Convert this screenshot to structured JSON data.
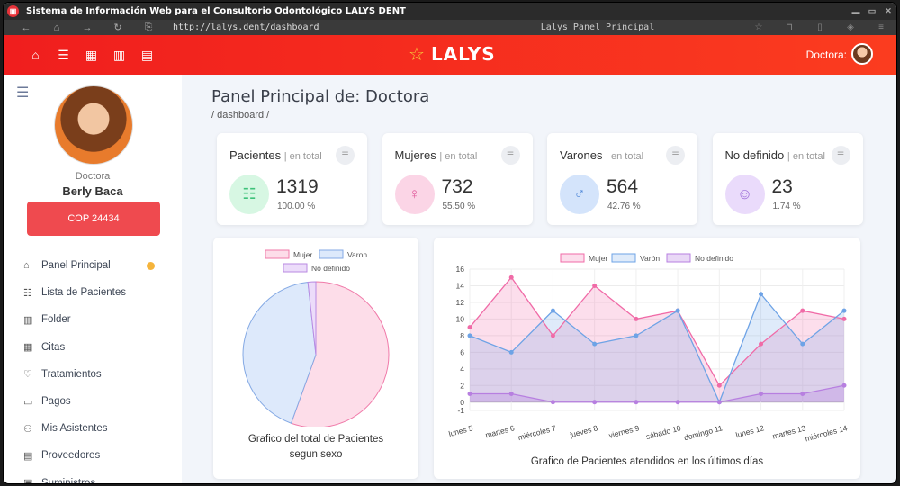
{
  "window": {
    "title": "Sistema de Información Web para el Consultorio Odontológico LALYS DENT"
  },
  "browser": {
    "url": "http://lalys.dent/dashboard",
    "page_title": "Lalys Panel Principal"
  },
  "header": {
    "brand": "LALYS",
    "user_label": "Doctora:"
  },
  "sidebar": {
    "role": "Doctora",
    "name": "Berly Baca",
    "cop_label": "COP 24434",
    "items": [
      {
        "label": "Panel Principal",
        "icon": "home-icon"
      },
      {
        "label": "Lista de Pacientes",
        "icon": "list-icon"
      },
      {
        "label": "Folder",
        "icon": "folder-icon"
      },
      {
        "label": "Citas",
        "icon": "calendar-icon"
      },
      {
        "label": "Tratamientos",
        "icon": "tooth-icon"
      },
      {
        "label": "Pagos",
        "icon": "payment-icon"
      },
      {
        "label": "Mis Asistentes",
        "icon": "users-icon"
      },
      {
        "label": "Proveedores",
        "icon": "store-icon"
      },
      {
        "label": "Suministros",
        "icon": "box-icon"
      }
    ]
  },
  "main": {
    "title": "Panel Principal de: Doctora",
    "breadcrumb": "/ dashboard /",
    "stats": [
      {
        "label": "Pacientes",
        "sub": "| en total",
        "value": "1319",
        "pct": "100.00 %",
        "color": "#d7f7e3",
        "icon_color": "#3ec27a"
      },
      {
        "label": "Mujeres",
        "sub": "| en total",
        "value": "732",
        "pct": "55.50 %",
        "color": "#fbd5e6",
        "icon_color": "#e0589a"
      },
      {
        "label": "Varones",
        "sub": "| en total",
        "value": "564",
        "pct": "42.76 %",
        "color": "#d4e4fb",
        "icon_color": "#4d86d8"
      },
      {
        "label": "No definido",
        "sub": "| en total",
        "value": "23",
        "pct": "1.74 %",
        "color": "#eadbfb",
        "icon_color": "#9b6bd8"
      }
    ],
    "pie_caption_1": "Grafico del total de Pacientes",
    "pie_caption_2": "segun sexo",
    "line_caption": "Grafico de Pacientes atendidos en los últimos días"
  },
  "chart_data": [
    {
      "type": "pie",
      "categories": [
        "Mujer",
        "Varon",
        "No definido"
      ],
      "values": [
        732,
        564,
        23
      ],
      "colors": [
        "#fddde9",
        "#dde9fb",
        "#ecdcfa"
      ],
      "legend": "top"
    },
    {
      "type": "area",
      "x": [
        "lunes 5",
        "martes 6",
        "miércoles 7",
        "jueves 8",
        "viernes 9",
        "sábado 10",
        "domingo 11",
        "lunes 12",
        "martes 13",
        "miércoles 14"
      ],
      "series": [
        {
          "name": "Mujer",
          "values": [
            9,
            15,
            8,
            14,
            10,
            11,
            2,
            7,
            11,
            10
          ],
          "color": "#f06ba7"
        },
        {
          "name": "Varón",
          "values": [
            8,
            6,
            11,
            7,
            8,
            11,
            0,
            13,
            7,
            11
          ],
          "color": "#6ea3e6"
        },
        {
          "name": "No definido",
          "values": [
            1,
            1,
            0,
            0,
            0,
            0,
            0,
            1,
            1,
            2
          ],
          "color": "#b77fe0"
        }
      ],
      "yticks": [
        -1,
        0,
        2,
        4,
        6,
        8,
        10,
        12,
        14,
        16
      ],
      "ylim": [
        -1,
        16
      ],
      "grid": true,
      "legend": "top"
    }
  ]
}
